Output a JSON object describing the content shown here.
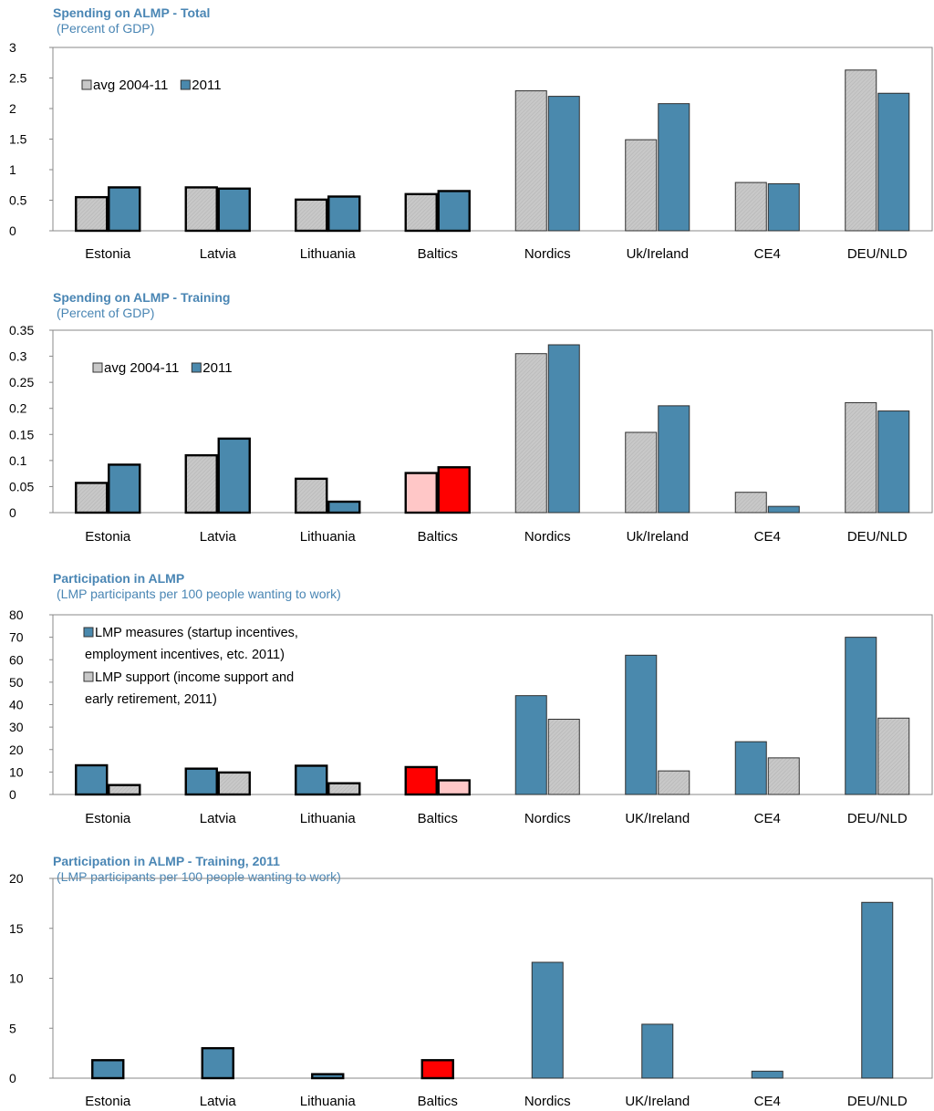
{
  "colors": {
    "blue": "#4a89ad",
    "gray": "#c8c8c8",
    "red": "#ff0000",
    "pink": "#ffc7c7",
    "title": "#4a86b4"
  },
  "chart_data": [
    {
      "type": "bar",
      "title": "Spending on ALMP - Total",
      "subtitle": "(Percent of GDP)",
      "categories": [
        "Estonia",
        "Latvia",
        "Lithuania",
        "Baltics",
        "Nordics",
        "Uk/Ireland",
        "CE4",
        "DEU/NLD"
      ],
      "series": [
        {
          "name": "avg 2004-11",
          "values": [
            0.55,
            0.71,
            0.51,
            0.6,
            2.29,
            1.49,
            0.79,
            2.63
          ]
        },
        {
          "name": "2011",
          "values": [
            0.71,
            0.69,
            0.56,
            0.65,
            2.2,
            2.08,
            0.77,
            2.25
          ]
        }
      ],
      "ylim": [
        0,
        3
      ],
      "yticks": [
        "0",
        "0.5",
        "1",
        "1.5",
        "2",
        "2.5",
        "3"
      ],
      "legend": "top-left",
      "outlined_categories": [
        "Estonia",
        "Latvia",
        "Lithuania",
        "Baltics"
      ],
      "red_categories": []
    },
    {
      "type": "bar",
      "title": "Spending on ALMP - Training",
      "subtitle": "(Percent of GDP)",
      "categories": [
        "Estonia",
        "Latvia",
        "Lithuania",
        "Baltics",
        "Nordics",
        "Uk/Ireland",
        "CE4",
        "DEU/NLD"
      ],
      "series": [
        {
          "name": "avg 2004-11",
          "values": [
            0.057,
            0.11,
            0.065,
            0.076,
            0.305,
            0.154,
            0.039,
            0.211
          ]
        },
        {
          "name": "2011",
          "values": [
            0.092,
            0.142,
            0.021,
            0.087,
            0.322,
            0.205,
            0.012,
            0.195
          ]
        }
      ],
      "ylim": [
        0,
        0.35
      ],
      "yticks": [
        "0",
        "0.05",
        "0.1",
        "0.15",
        "0.2",
        "0.25",
        "0.3",
        "0.35"
      ],
      "legend": "top-left",
      "outlined_categories": [
        "Estonia",
        "Latvia",
        "Lithuania",
        "Baltics"
      ],
      "red_categories": [
        "Baltics"
      ]
    },
    {
      "type": "bar",
      "title": "Participation in ALMP",
      "subtitle": "(LMP participants per 100 people wanting to work)",
      "categories": [
        "Estonia",
        "Latvia",
        "Lithuania",
        "Baltics",
        "Nordics",
        "UK/Ireland",
        "CE4",
        "DEU/NLD"
      ],
      "series": [
        {
          "name": "LMP measures (startup incentives, employment incentives, etc. 2011)",
          "values": [
            13,
            11.5,
            12.8,
            12.2,
            44,
            62,
            23.5,
            70
          ]
        },
        {
          "name": "LMP support (income support and early retirement, 2011)",
          "values": [
            4.2,
            9.8,
            5,
            6.3,
            33.5,
            10.5,
            16.3,
            34
          ]
        }
      ],
      "legend_lines": [
        [
          "LMP measures (startup incentives,",
          "employment incentives, etc. 2011)"
        ],
        [
          "LMP support (income support and",
          "early retirement, 2011)"
        ]
      ],
      "ylim": [
        0,
        80
      ],
      "yticks": [
        "0",
        "10",
        "20",
        "30",
        "40",
        "50",
        "60",
        "70",
        "80"
      ],
      "legend": "top-left",
      "outlined_categories": [
        "Estonia",
        "Latvia",
        "Lithuania",
        "Baltics"
      ],
      "red_categories": [
        "Baltics"
      ]
    },
    {
      "type": "bar",
      "title": "Participation in ALMP - Training, 2011",
      "subtitle": "(LMP participants per 100 people wanting to work)",
      "categories": [
        "Estonia",
        "Latvia",
        "Lithuania",
        "Baltics",
        "Nordics",
        "UK/Ireland",
        "CE4",
        "DEU/NLD"
      ],
      "series": [
        {
          "name": "",
          "values": [
            1.8,
            3.0,
            0.4,
            1.8,
            11.6,
            5.4,
            0.7,
            17.6
          ]
        }
      ],
      "ylim": [
        0,
        20
      ],
      "yticks": [
        "0",
        "5",
        "10",
        "15",
        "20"
      ],
      "legend": "none",
      "outlined_categories": [
        "Estonia",
        "Latvia",
        "Lithuania",
        "Baltics"
      ],
      "red_categories": [
        "Baltics"
      ]
    }
  ]
}
